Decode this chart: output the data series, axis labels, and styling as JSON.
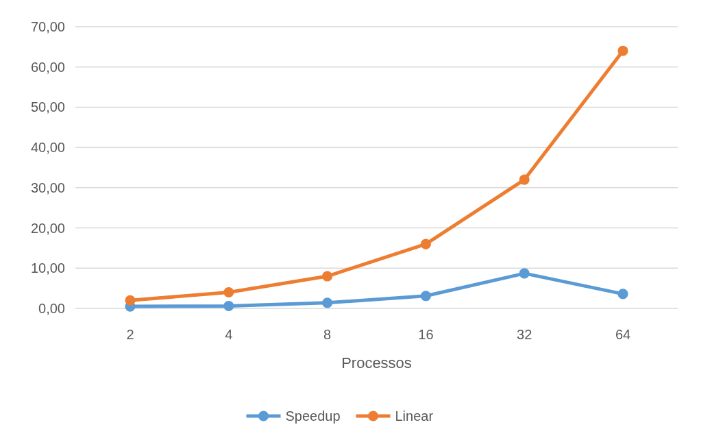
{
  "chart_data": {
    "type": "line",
    "xlabel": "Processos",
    "categories": [
      "2",
      "4",
      "8",
      "16",
      "32",
      "64"
    ],
    "series": [
      {
        "name": "Speedup",
        "color": "#5b9bd5",
        "values": [
          0.5,
          0.6,
          1.4,
          3.1,
          8.7,
          3.6
        ]
      },
      {
        "name": "Linear",
        "color": "#ed7d31",
        "values": [
          2,
          4,
          8,
          16,
          32,
          64
        ]
      }
    ],
    "ylim": [
      0,
      70
    ],
    "yticks": [
      {
        "value": 0,
        "label": "0,00"
      },
      {
        "value": 10,
        "label": "10,00"
      },
      {
        "value": 20,
        "label": "20,00"
      },
      {
        "value": 30,
        "label": "30,00"
      },
      {
        "value": 40,
        "label": "40,00"
      },
      {
        "value": 50,
        "label": "50,00"
      },
      {
        "value": 60,
        "label": "60,00"
      },
      {
        "value": 70,
        "label": "70,00"
      }
    ],
    "grid": "y",
    "legend": "bottom",
    "marker": "circle",
    "line_style": "solid"
  }
}
